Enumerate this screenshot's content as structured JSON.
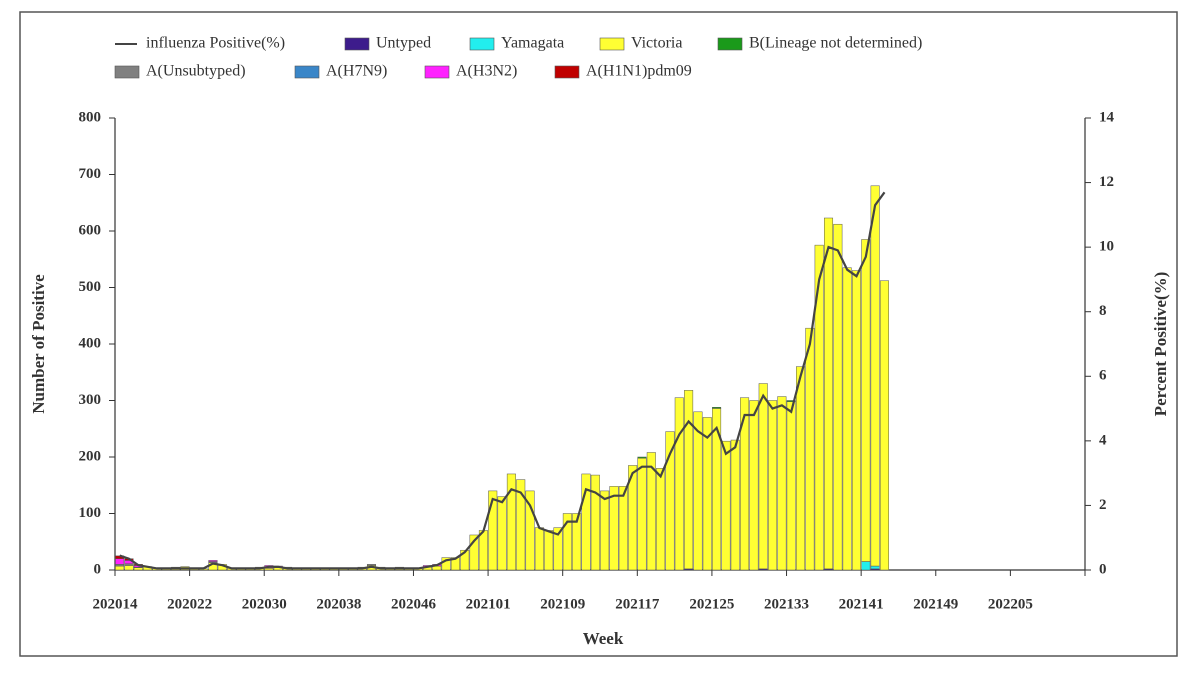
{
  "chart_data": {
    "type": "bar",
    "stacked": true,
    "x_label": "Week",
    "y_label": "Number of Positive",
    "y2_label": "Percent Positive(%)",
    "ylim": [
      0,
      800
    ],
    "yticks": [
      0,
      100,
      200,
      300,
      400,
      500,
      600,
      700,
      800
    ],
    "y2lim": [
      0,
      14
    ],
    "y2ticks": [
      0,
      2,
      4,
      6,
      8,
      10,
      12,
      14
    ],
    "categories": [
      "202014",
      null,
      null,
      null,
      null,
      null,
      null,
      null,
      "202022",
      null,
      null,
      null,
      null,
      null,
      null,
      null,
      "202030",
      null,
      null,
      null,
      null,
      null,
      null,
      null,
      "202038",
      null,
      null,
      null,
      null,
      null,
      null,
      null,
      "202046",
      null,
      null,
      null,
      null,
      null,
      null,
      null,
      "202101",
      null,
      null,
      null,
      null,
      null,
      null,
      null,
      "202109",
      null,
      null,
      null,
      null,
      null,
      null,
      null,
      "202117",
      null,
      null,
      null,
      null,
      null,
      null,
      null,
      "202125",
      null,
      null,
      null,
      null,
      null,
      null,
      null,
      "202133",
      null,
      null,
      null,
      null,
      null,
      null,
      null,
      "202141",
      null,
      null,
      null,
      null,
      null,
      null,
      null,
      "202149",
      null,
      null,
      null,
      null,
      null,
      null,
      null,
      "202205",
      null,
      null,
      null,
      null,
      null,
      null,
      null
    ],
    "series": [
      {
        "name": "influenza Positive(%)",
        "type": "line",
        "axis": "y2",
        "color": "#444444",
        "values": [
          0.45,
          0.35,
          0.15,
          0.1,
          0.05,
          0.05,
          0.05,
          0.05,
          0.05,
          0.05,
          0.2,
          0.15,
          0.05,
          0.05,
          0.05,
          0.05,
          0.1,
          0.1,
          0.05,
          0.05,
          0.05,
          0.05,
          0.05,
          0.05,
          0.05,
          0.05,
          0.05,
          0.1,
          0.05,
          0.05,
          0.05,
          0.05,
          0.05,
          0.1,
          0.15,
          0.3,
          0.35,
          0.55,
          0.9,
          1.2,
          2.2,
          2.1,
          2.5,
          2.4,
          2.0,
          1.3,
          1.2,
          1.1,
          1.5,
          1.5,
          2.5,
          2.4,
          2.2,
          2.3,
          2.3,
          3.0,
          3.2,
          3.2,
          2.9,
          3.6,
          4.2,
          4.6,
          4.3,
          4.1,
          4.4,
          3.6,
          3.8,
          4.8,
          4.8,
          5.4,
          5.0,
          5.1,
          4.9,
          6.0,
          7.0,
          9.0,
          10.0,
          9.9,
          9.3,
          9.1,
          9.7,
          11.3,
          11.7,
          null,
          null,
          null,
          null,
          null,
          null,
          null,
          null,
          null,
          null,
          null,
          null,
          null,
          null,
          null,
          null,
          null,
          null,
          null,
          null,
          null
        ]
      },
      {
        "name": "Untyped",
        "color": "#3d1c8c",
        "values": [
          0,
          0,
          0,
          0,
          0,
          0,
          0,
          0,
          0,
          0,
          0,
          0,
          0,
          0,
          0,
          0,
          0,
          0,
          0,
          0,
          0,
          0,
          0,
          0,
          0,
          0,
          0,
          0,
          0,
          0,
          0,
          0,
          0,
          0,
          0,
          0,
          0,
          0,
          0,
          0,
          0,
          0,
          0,
          0,
          0,
          0,
          0,
          0,
          0,
          0,
          0,
          0,
          0,
          0,
          0,
          0,
          0,
          0,
          0,
          0,
          0,
          2,
          0,
          0,
          0,
          0,
          0,
          0,
          0,
          2,
          0,
          0,
          0,
          0,
          0,
          0,
          2,
          0,
          0,
          0,
          0,
          2,
          0,
          null,
          null,
          null,
          null,
          null,
          null,
          null,
          null,
          null,
          null,
          null,
          null,
          null,
          null,
          null,
          null,
          null,
          null,
          null,
          null,
          null
        ]
      },
      {
        "name": "Yamagata",
        "color": "#22eeee",
        "values": [
          0,
          0,
          0,
          0,
          0,
          0,
          0,
          0,
          0,
          0,
          0,
          0,
          0,
          0,
          0,
          0,
          0,
          0,
          0,
          0,
          0,
          0,
          0,
          0,
          0,
          0,
          0,
          0,
          0,
          0,
          0,
          0,
          0,
          0,
          0,
          0,
          0,
          0,
          0,
          0,
          0,
          0,
          0,
          0,
          0,
          0,
          0,
          0,
          0,
          0,
          0,
          0,
          0,
          0,
          0,
          0,
          0,
          0,
          0,
          0,
          0,
          0,
          0,
          0,
          0,
          0,
          0,
          0,
          0,
          0,
          0,
          0,
          0,
          0,
          0,
          0,
          0,
          0,
          0,
          0,
          15,
          5,
          0,
          null,
          null,
          null,
          null,
          null,
          null,
          null,
          null,
          null,
          null,
          null,
          null,
          null,
          null,
          null,
          null,
          null,
          null,
          null,
          null,
          null
        ]
      },
      {
        "name": "Victoria",
        "color": "#ffff33",
        "values": [
          7,
          8,
          4,
          6,
          3,
          2,
          5,
          6,
          3,
          2,
          13,
          10,
          3,
          2,
          2,
          5,
          3,
          4,
          5,
          4,
          3,
          3,
          3,
          3,
          2,
          3,
          5,
          8,
          5,
          3,
          5,
          3,
          4,
          5,
          7,
          22,
          22,
          35,
          62,
          70,
          140,
          130,
          170,
          160,
          140,
          75,
          70,
          75,
          100,
          100,
          170,
          168,
          140,
          148,
          148,
          185,
          198,
          208,
          180,
          245,
          305,
          316,
          280,
          270,
          286,
          228,
          230,
          305,
          300,
          328,
          300,
          307,
          298,
          360,
          428,
          575,
          621,
          612,
          535,
          530,
          570,
          673,
          512,
          null,
          null,
          null,
          null,
          null,
          null,
          null,
          null,
          null,
          null,
          null,
          null,
          null,
          null,
          null,
          null,
          null,
          null,
          null,
          null,
          null
        ]
      },
      {
        "name": "B(Lineage not determined)",
        "color": "#1a9a1a",
        "values": [
          0,
          0,
          0,
          0,
          0,
          0,
          0,
          0,
          0,
          0,
          0,
          0,
          0,
          0,
          0,
          0,
          0,
          0,
          0,
          0,
          0,
          0,
          0,
          0,
          0,
          0,
          0,
          0,
          0,
          0,
          0,
          0,
          0,
          0,
          0,
          0,
          0,
          0,
          0,
          0,
          0,
          0,
          0,
          0,
          0,
          0,
          0,
          0,
          0,
          0,
          0,
          0,
          0,
          0,
          0,
          0,
          2,
          0,
          0,
          0,
          0,
          0,
          0,
          0,
          2,
          0,
          0,
          0,
          0,
          0,
          0,
          0,
          2,
          0,
          0,
          0,
          0,
          0,
          0,
          0,
          0,
          0,
          0,
          null,
          null,
          null,
          null,
          null,
          null,
          null,
          null,
          null,
          null,
          null,
          null,
          null,
          null,
          null,
          null,
          null,
          null,
          null,
          null,
          null
        ]
      },
      {
        "name": "A(Unsubtyped)",
        "color": "#808080",
        "values": [
          3,
          3,
          1,
          0,
          0,
          0,
          0,
          0,
          0,
          0,
          2,
          0,
          0,
          0,
          0,
          0,
          0,
          0,
          0,
          0,
          0,
          0,
          0,
          0,
          0,
          0,
          0,
          2,
          0,
          0,
          0,
          0,
          0,
          0,
          0,
          0,
          0,
          0,
          0,
          0,
          0,
          0,
          0,
          0,
          0,
          0,
          0,
          0,
          0,
          0,
          0,
          0,
          0,
          0,
          0,
          0,
          0,
          0,
          0,
          0,
          0,
          0,
          0,
          0,
          0,
          0,
          0,
          0,
          0,
          0,
          0,
          0,
          0,
          0,
          0,
          0,
          0,
          0,
          0,
          0,
          0,
          0,
          0,
          null,
          null,
          null,
          null,
          null,
          null,
          null,
          null,
          null,
          null,
          null,
          null,
          null,
          null,
          null,
          null,
          null,
          null,
          null,
          null,
          null
        ]
      },
      {
        "name": "A(H7N9)",
        "color": "#3a86c8",
        "values": [
          0,
          0,
          0,
          0,
          0,
          0,
          0,
          0,
          0,
          0,
          0,
          0,
          0,
          0,
          0,
          0,
          0,
          0,
          0,
          0,
          0,
          0,
          0,
          0,
          0,
          0,
          0,
          0,
          0,
          0,
          0,
          0,
          0,
          0,
          0,
          0,
          0,
          0,
          0,
          0,
          0,
          0,
          0,
          0,
          0,
          0,
          0,
          0,
          0,
          0,
          0,
          0,
          0,
          0,
          0,
          0,
          0,
          0,
          0,
          0,
          0,
          0,
          0,
          0,
          0,
          0,
          0,
          0,
          0,
          0,
          0,
          0,
          0,
          0,
          0,
          0,
          0,
          0,
          0,
          0,
          0,
          0,
          0,
          null,
          null,
          null,
          null,
          null,
          null,
          null,
          null,
          null,
          null,
          null,
          null,
          null,
          null,
          null,
          null,
          null,
          null,
          null,
          null,
          null
        ]
      },
      {
        "name": "A(H3N2)",
        "color": "#ff22ff",
        "values": [
          10,
          6,
          3,
          0,
          0,
          0,
          0,
          0,
          0,
          0,
          2,
          0,
          0,
          0,
          0,
          0,
          5,
          3,
          0,
          0,
          0,
          0,
          0,
          0,
          0,
          0,
          0,
          0,
          0,
          0,
          0,
          0,
          0,
          3,
          3,
          0,
          0,
          0,
          0,
          0,
          0,
          0,
          0,
          0,
          0,
          0,
          0,
          0,
          0,
          0,
          0,
          0,
          0,
          0,
          0,
          0,
          0,
          0,
          0,
          0,
          0,
          0,
          0,
          0,
          0,
          0,
          0,
          0,
          0,
          0,
          0,
          0,
          0,
          0,
          0,
          0,
          0,
          0,
          0,
          0,
          0,
          0,
          0,
          null,
          null,
          null,
          null,
          null,
          null,
          null,
          null,
          null,
          null,
          null,
          null,
          null,
          null,
          null,
          null,
          null,
          null,
          null,
          null,
          null
        ]
      },
      {
        "name": "A(H1N1)pdm09",
        "color": "#c00000",
        "values": [
          5,
          3,
          2,
          0,
          0,
          0,
          0,
          0,
          0,
          0,
          0,
          0,
          0,
          0,
          0,
          0,
          0,
          0,
          0,
          0,
          0,
          0,
          0,
          0,
          0,
          0,
          0,
          0,
          0,
          0,
          0,
          0,
          0,
          0,
          0,
          0,
          0,
          0,
          0,
          0,
          0,
          0,
          0,
          0,
          0,
          0,
          0,
          0,
          0,
          0,
          0,
          0,
          0,
          0,
          0,
          0,
          0,
          0,
          0,
          0,
          0,
          0,
          0,
          0,
          0,
          0,
          0,
          0,
          0,
          0,
          0,
          0,
          0,
          0,
          0,
          0,
          0,
          0,
          0,
          0,
          0,
          0,
          0,
          null,
          null,
          null,
          null,
          null,
          null,
          null,
          null,
          null,
          null,
          null,
          null,
          null,
          null,
          null,
          null,
          null,
          null,
          null,
          null,
          null
        ]
      }
    ]
  }
}
